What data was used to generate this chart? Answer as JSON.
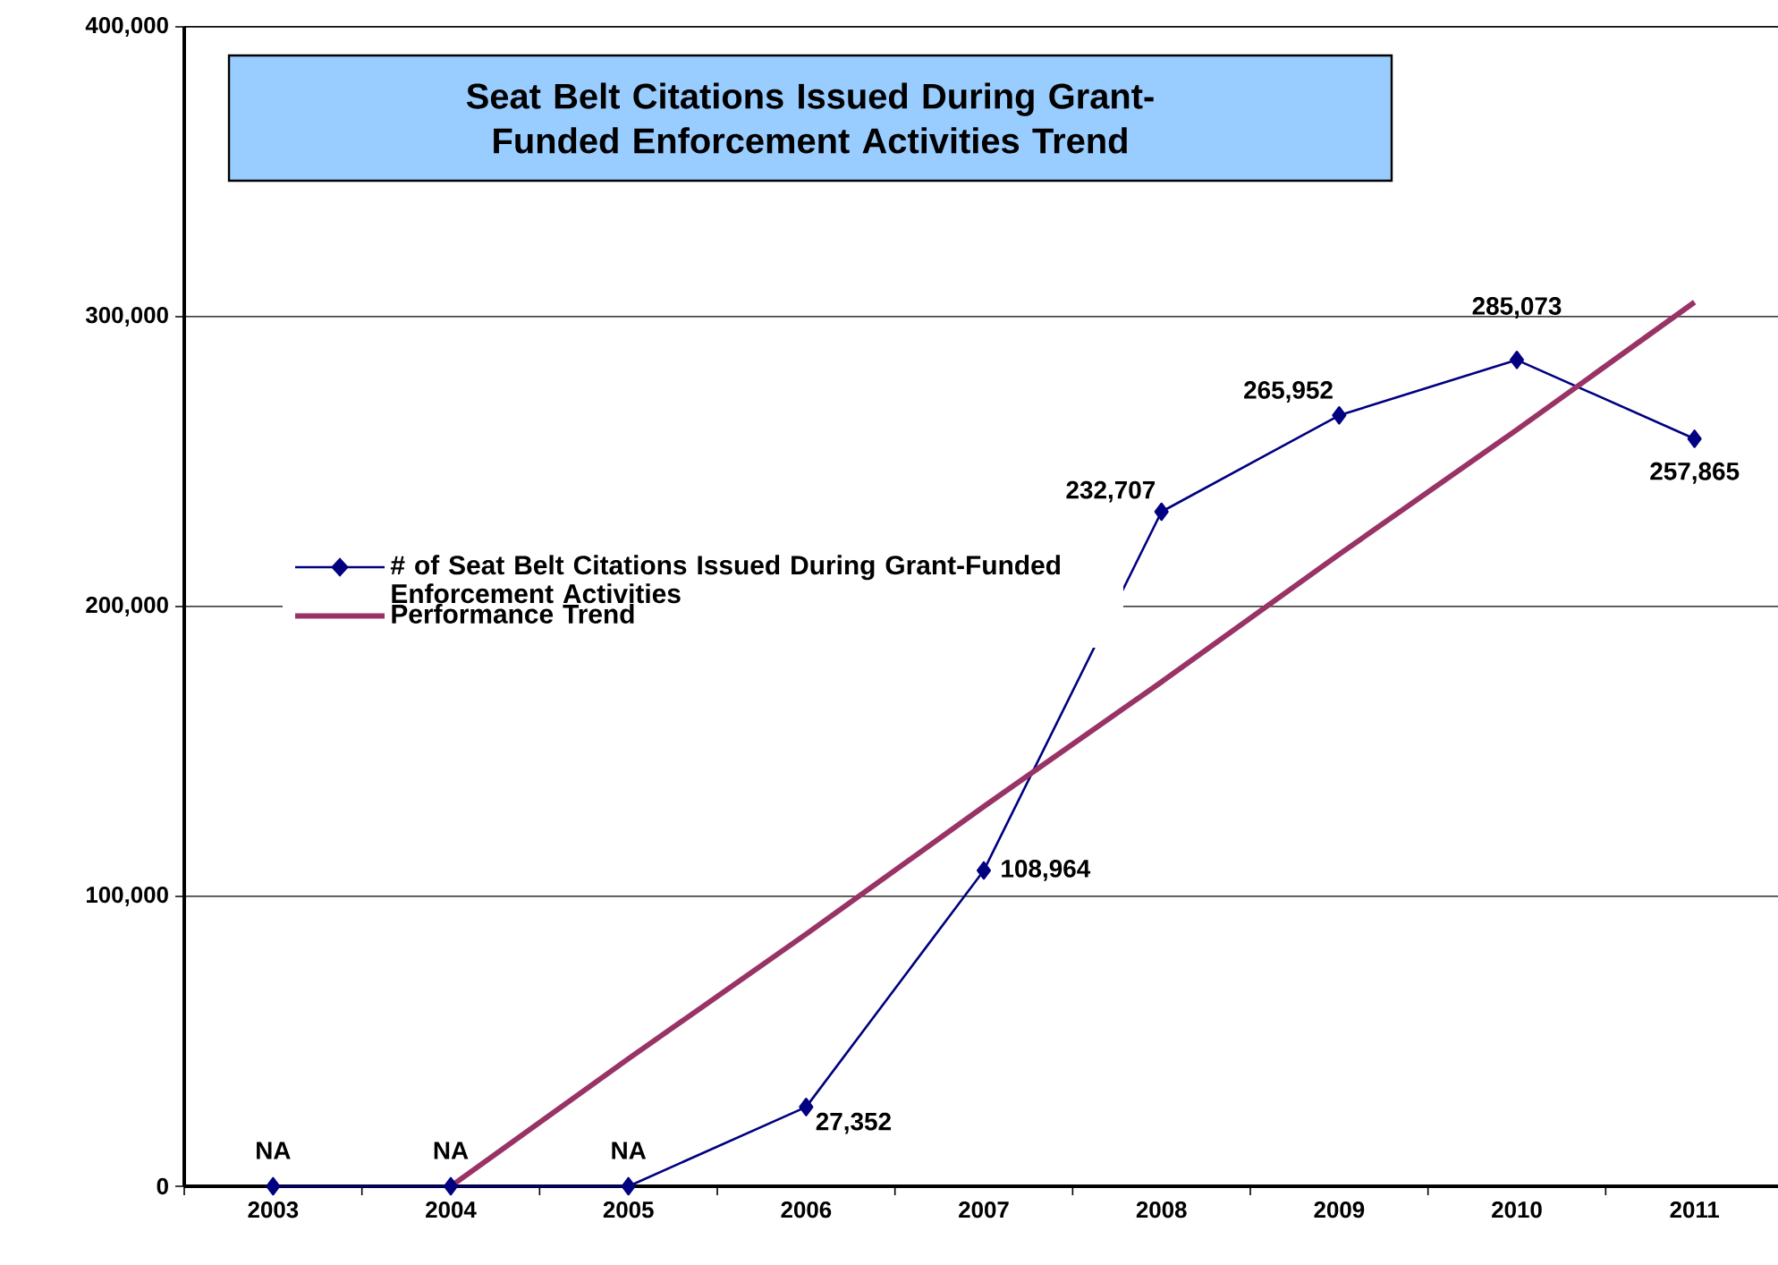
{
  "chart_data": {
    "type": "line",
    "title": "Seat Belt Citations Issued During Grant-Funded Enforcement Activities Trend",
    "categories": [
      "2003",
      "2004",
      "2005",
      "2006",
      "2007",
      "2008",
      "2009",
      "2010",
      "2011"
    ],
    "series": [
      {
        "name": "# of Seat Belt Citations Issued During Grant-Funded Enforcement Activities",
        "color": "#000080",
        "marker": "diamond",
        "values": [
          0,
          0,
          0,
          27352,
          108964,
          232707,
          265952,
          285073,
          257865
        ],
        "value_labels": [
          "NA",
          "NA",
          "NA",
          "27,352",
          "108,964",
          "232,707",
          "265,952",
          "285,073",
          "257,865"
        ]
      },
      {
        "name": "Performance Trend",
        "type": "line",
        "color": "#993366",
        "marker": "none",
        "values": [
          null,
          0,
          44000,
          87000,
          131000,
          174000,
          218000,
          261000,
          305000
        ]
      }
    ],
    "ylim": [
      0,
      400000
    ],
    "yticks": [
      0,
      {
        "value": 100000,
        "label": "100,000"
      },
      {
        "value": 200000,
        "label": "200,000"
      },
      {
        "value": 300000,
        "label": "300,000"
      },
      {
        "value": 400000,
        "label": "400,000"
      }
    ],
    "grid": "y",
    "legend": "left"
  }
}
